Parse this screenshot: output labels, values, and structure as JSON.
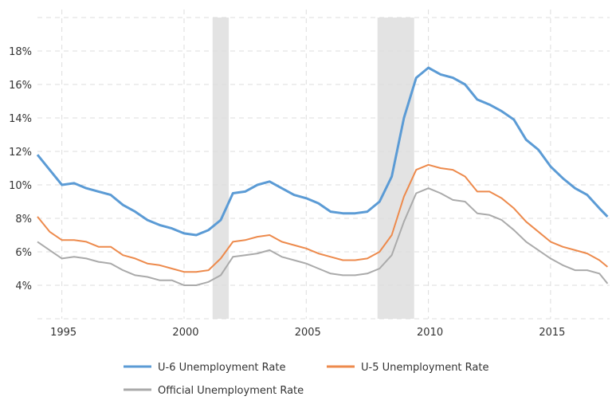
{
  "chart_data": {
    "type": "line",
    "title": "",
    "xlabel": "",
    "ylabel": "",
    "xlim": [
      "1994-01",
      "2017-06"
    ],
    "ylim": [
      2,
      20
    ],
    "grid": true,
    "legend_placement": "bottom",
    "x_ticks": [
      "1995",
      "2000",
      "2005",
      "2010",
      "2015"
    ],
    "y_ticks": [
      4,
      6,
      8,
      10,
      12,
      14,
      16,
      18
    ],
    "y_tick_labels": [
      "4%",
      "6%",
      "8%",
      "10%",
      "12%",
      "14%",
      "16%",
      "18%"
    ],
    "recessions": [
      [
        "2001-03",
        "2001-11"
      ],
      [
        "2007-12",
        "2009-06"
      ]
    ],
    "recession_color": "#e3e3e3",
    "x": [
      "1994-01",
      "1994-07",
      "1995-01",
      "1995-07",
      "1996-01",
      "1996-07",
      "1997-01",
      "1997-07",
      "1998-01",
      "1998-07",
      "1999-01",
      "1999-07",
      "2000-01",
      "2000-07",
      "2001-01",
      "2001-07",
      "2002-01",
      "2002-07",
      "2003-01",
      "2003-07",
      "2004-01",
      "2004-07",
      "2005-01",
      "2005-07",
      "2006-01",
      "2006-07",
      "2007-01",
      "2007-07",
      "2008-01",
      "2008-07",
      "2009-01",
      "2009-07",
      "2010-01",
      "2010-07",
      "2011-01",
      "2011-07",
      "2012-01",
      "2012-07",
      "2013-01",
      "2013-07",
      "2014-01",
      "2014-07",
      "2015-01",
      "2015-07",
      "2016-01",
      "2016-07",
      "2017-01",
      "2017-05"
    ],
    "series": [
      {
        "name": "U-6 Unemployment Rate",
        "color": "#5b9bd5",
        "values": [
          11.8,
          10.9,
          10.0,
          10.1,
          9.8,
          9.6,
          9.4,
          8.8,
          8.4,
          7.9,
          7.6,
          7.4,
          7.1,
          7.0,
          7.3,
          7.9,
          9.5,
          9.6,
          10.0,
          10.2,
          9.8,
          9.4,
          9.2,
          8.9,
          8.4,
          8.3,
          8.3,
          8.4,
          9.0,
          10.5,
          14.0,
          16.4,
          17.0,
          16.6,
          16.4,
          16.0,
          15.1,
          14.8,
          14.4,
          13.9,
          12.7,
          12.1,
          11.1,
          10.4,
          9.8,
          9.4,
          8.6,
          8.1
        ]
      },
      {
        "name": "U-5 Unemployment Rate",
        "color": "#ed8a4c",
        "values": [
          8.1,
          7.2,
          6.7,
          6.7,
          6.6,
          6.3,
          6.3,
          5.8,
          5.6,
          5.3,
          5.2,
          5.0,
          4.8,
          4.8,
          4.9,
          5.6,
          6.6,
          6.7,
          6.9,
          7.0,
          6.6,
          6.4,
          6.2,
          5.9,
          5.7,
          5.5,
          5.5,
          5.6,
          6.0,
          7.0,
          9.3,
          10.9,
          11.2,
          11.0,
          10.9,
          10.5,
          9.6,
          9.6,
          9.2,
          8.6,
          7.8,
          7.2,
          6.6,
          6.3,
          6.1,
          5.9,
          5.5,
          5.1
        ]
      },
      {
        "name": "Official Unemployment Rate",
        "color": "#aaaaaa",
        "values": [
          6.6,
          6.1,
          5.6,
          5.7,
          5.6,
          5.4,
          5.3,
          4.9,
          4.6,
          4.5,
          4.3,
          4.3,
          4.0,
          4.0,
          4.2,
          4.6,
          5.7,
          5.8,
          5.9,
          6.1,
          5.7,
          5.5,
          5.3,
          5.0,
          4.7,
          4.6,
          4.6,
          4.7,
          5.0,
          5.8,
          7.8,
          9.5,
          9.8,
          9.5,
          9.1,
          9.0,
          8.3,
          8.2,
          7.9,
          7.3,
          6.6,
          6.1,
          5.6,
          5.2,
          4.9,
          4.9,
          4.7,
          4.1
        ]
      }
    ]
  }
}
